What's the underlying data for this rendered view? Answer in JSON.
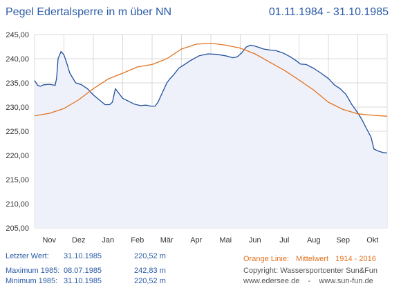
{
  "header": {
    "title": "Pegel Edertalsperre in m über NN",
    "date_range": "01.11.1984 - 31.10.1985"
  },
  "chart_data": {
    "type": "line",
    "ylim": [
      205,
      245
    ],
    "yticks": [
      "245,00",
      "240,00",
      "235,00",
      "230,00",
      "225,00",
      "220,00",
      "215,00",
      "210,00",
      "205,00"
    ],
    "ytick_values": [
      245,
      240,
      235,
      230,
      225,
      220,
      215,
      210,
      205
    ],
    "xlim": [
      0,
      12
    ],
    "month_labels": [
      "Nov",
      "Dez",
      "Jan",
      "Feb",
      "Mär",
      "Apr",
      "Mai",
      "Jun",
      "Jul",
      "Aug",
      "Sep",
      "Okt"
    ],
    "grid": true,
    "series": [
      {
        "color": "#1f4e9c",
        "fill": "#eef1fa",
        "x": [
          0,
          0.1,
          0.2,
          0.3,
          0.5,
          0.7,
          0.75,
          0.8,
          0.9,
          1.0,
          1.1,
          1.2,
          1.4,
          1.6,
          1.8,
          2.0,
          2.2,
          2.4,
          2.55,
          2.65,
          2.75,
          2.85,
          3.0,
          3.2,
          3.4,
          3.6,
          3.8,
          3.95,
          4.1,
          4.2,
          4.35,
          4.5,
          4.6,
          4.75,
          4.9,
          5.1,
          5.3,
          5.6,
          5.9,
          6.2,
          6.5,
          6.75,
          6.9,
          7.05,
          7.2,
          7.35,
          7.5,
          7.65,
          7.8,
          8.0,
          8.2,
          8.45,
          8.7,
          8.9,
          9.05,
          9.25,
          9.5,
          9.75,
          10.0,
          10.2,
          10.4,
          10.6,
          10.8,
          11.0,
          11.15,
          11.3,
          11.45,
          11.55,
          11.7,
          11.85,
          12.0
        ],
        "y": [
          235.5,
          234.5,
          234.3,
          234.6,
          234.7,
          234.5,
          236.0,
          240.0,
          241.5,
          240.8,
          239.0,
          237.0,
          235.0,
          234.6,
          233.8,
          232.5,
          231.5,
          230.5,
          230.5,
          231.0,
          233.8,
          233.0,
          231.8,
          231.2,
          230.6,
          230.3,
          230.4,
          230.2,
          230.2,
          231.0,
          233.0,
          235.0,
          235.8,
          236.8,
          238.0,
          238.8,
          239.6,
          240.6,
          241.0,
          240.9,
          240.6,
          240.2,
          240.4,
          241.2,
          242.4,
          242.8,
          242.6,
          242.3,
          242.0,
          241.8,
          241.7,
          241.2,
          240.4,
          239.6,
          238.9,
          238.8,
          238.0,
          237.0,
          235.9,
          234.6,
          233.8,
          232.6,
          230.5,
          228.8,
          227.3,
          225.5,
          223.8,
          221.3,
          220.9,
          220.6,
          220.5
        ]
      },
      {
        "name": "Mittelwert",
        "color": "#e3731f",
        "x": [
          0,
          0.5,
          1.0,
          1.5,
          2.0,
          2.5,
          3.0,
          3.5,
          4.0,
          4.5,
          5.0,
          5.5,
          6.0,
          6.5,
          7.0,
          7.5,
          8.0,
          8.5,
          9.0,
          9.5,
          10.0,
          10.5,
          11.0,
          11.5,
          12.0
        ],
        "y": [
          228.2,
          228.7,
          229.7,
          231.5,
          233.8,
          235.8,
          237.0,
          238.3,
          238.8,
          240.0,
          242.0,
          243.0,
          243.2,
          242.8,
          242.2,
          241.0,
          239.3,
          237.6,
          235.6,
          233.5,
          231.0,
          229.5,
          228.6,
          228.3,
          228.1
        ]
      }
    ]
  },
  "info": {
    "last_label": "Letzter Wert:",
    "last_date": "31.10.1985",
    "last_value": "220,52 m",
    "max_label": "Maximum 1985:",
    "max_date": "08.07.1985",
    "max_value": "242,83 m",
    "min_label": "Minimum  1985:",
    "min_date": "31.10.1985",
    "min_value": "220,52 m"
  },
  "legend": {
    "orange_label": "Orange Linie:",
    "mean_label": "Mittelwert",
    "mean_years": "1914 - 2016"
  },
  "footer": {
    "copyright": "Copyright: Wassersportcenter Sun&Fun",
    "sites": "www.edersee.de    -    www.sun-fun.de"
  },
  "colors": {
    "text_blue": "#2a5ba6",
    "orange": "#e3731f",
    "grid": "#d9d9d9"
  }
}
